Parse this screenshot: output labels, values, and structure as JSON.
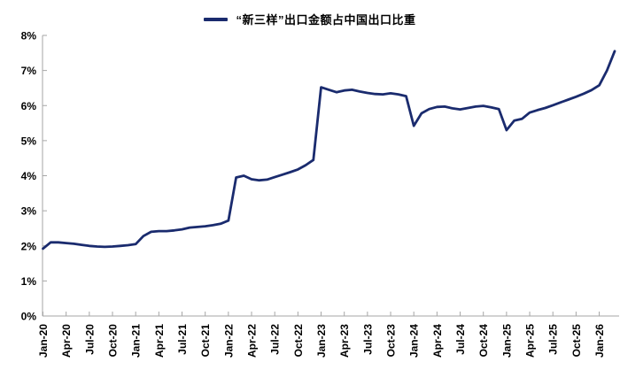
{
  "chart_data": {
    "type": "line",
    "title": "“新三样”出口金额占中国出口比重",
    "legend_position": "top-center",
    "grid": "off",
    "frequency": "monthly",
    "x_start": "Jan-20",
    "x_end": "Mar-26",
    "ylim": [
      0,
      8
    ],
    "y_tick_labels": [
      "0%",
      "1%",
      "2%",
      "3%",
      "4%",
      "5%",
      "6%",
      "7%",
      "8%"
    ],
    "x_tick_labels": [
      "Jan-20",
      "Apr-20",
      "Jul-20",
      "Oct-20",
      "Jan-21",
      "Apr-21",
      "Jul-21",
      "Oct-21",
      "Jan-22",
      "Apr-22",
      "Jul-22",
      "Oct-22",
      "Jan-23",
      "Apr-23",
      "Jul-23",
      "Oct-23",
      "Jan-24",
      "Apr-24",
      "Jul-24",
      "Oct-24",
      "Jan-25",
      "Apr-25",
      "Jul-25",
      "Oct-25",
      "Jan-26"
    ],
    "x_tick_every_n_points": 3,
    "axis_color": "#a6a6a6",
    "text_color": "#000000",
    "series": [
      {
        "name": "“新三样”出口金额占中国出口比重",
        "color": "#1a2b6e",
        "unit": "%",
        "x": [
          "Jan-20",
          "Feb-20",
          "Mar-20",
          "Apr-20",
          "May-20",
          "Jun-20",
          "Jul-20",
          "Aug-20",
          "Sep-20",
          "Oct-20",
          "Nov-20",
          "Dec-20",
          "Jan-21",
          "Feb-21",
          "Mar-21",
          "Apr-21",
          "May-21",
          "Jun-21",
          "Jul-21",
          "Aug-21",
          "Sep-21",
          "Oct-21",
          "Nov-21",
          "Dec-21",
          "Jan-22",
          "Feb-22",
          "Mar-22",
          "Apr-22",
          "May-22",
          "Jun-22",
          "Jul-22",
          "Aug-22",
          "Sep-22",
          "Oct-22",
          "Nov-22",
          "Dec-22",
          "Jan-23",
          "Feb-23",
          "Mar-23",
          "Apr-23",
          "May-23",
          "Jun-23",
          "Jul-23",
          "Aug-23",
          "Sep-23",
          "Oct-23",
          "Nov-23",
          "Dec-23",
          "Jan-24",
          "Feb-24",
          "Mar-24",
          "Apr-24",
          "May-24",
          "Jun-24",
          "Jul-24",
          "Aug-24",
          "Sep-24",
          "Oct-24",
          "Nov-24",
          "Dec-24",
          "Jan-25",
          "Feb-25",
          "Mar-25",
          "Apr-25",
          "May-25",
          "Jun-25",
          "Jul-25",
          "Aug-25",
          "Sep-25",
          "Oct-25",
          "Nov-25",
          "Dec-25",
          "Jan-26",
          "Feb-26",
          "Mar-26"
        ],
        "values": [
          1.92,
          2.1,
          2.1,
          2.08,
          2.06,
          2.03,
          2.0,
          1.98,
          1.97,
          1.98,
          2.0,
          2.02,
          2.05,
          2.28,
          2.4,
          2.42,
          2.42,
          2.44,
          2.47,
          2.52,
          2.54,
          2.56,
          2.59,
          2.63,
          2.72,
          3.95,
          4.0,
          3.9,
          3.87,
          3.89,
          3.96,
          4.03,
          4.1,
          4.18,
          4.3,
          4.45,
          6.52,
          6.45,
          6.38,
          6.43,
          6.45,
          6.4,
          6.36,
          6.33,
          6.32,
          6.35,
          6.32,
          6.27,
          5.42,
          5.78,
          5.9,
          5.96,
          5.97,
          5.92,
          5.89,
          5.93,
          5.97,
          5.99,
          5.95,
          5.9,
          5.3,
          5.57,
          5.62,
          5.8,
          5.87,
          5.93,
          6.01,
          6.09,
          6.17,
          6.25,
          6.34,
          6.44,
          6.58,
          7.0,
          7.55
        ]
      }
    ]
  },
  "legend": {
    "label": "“新三样”出口金额占中国出口比重"
  }
}
